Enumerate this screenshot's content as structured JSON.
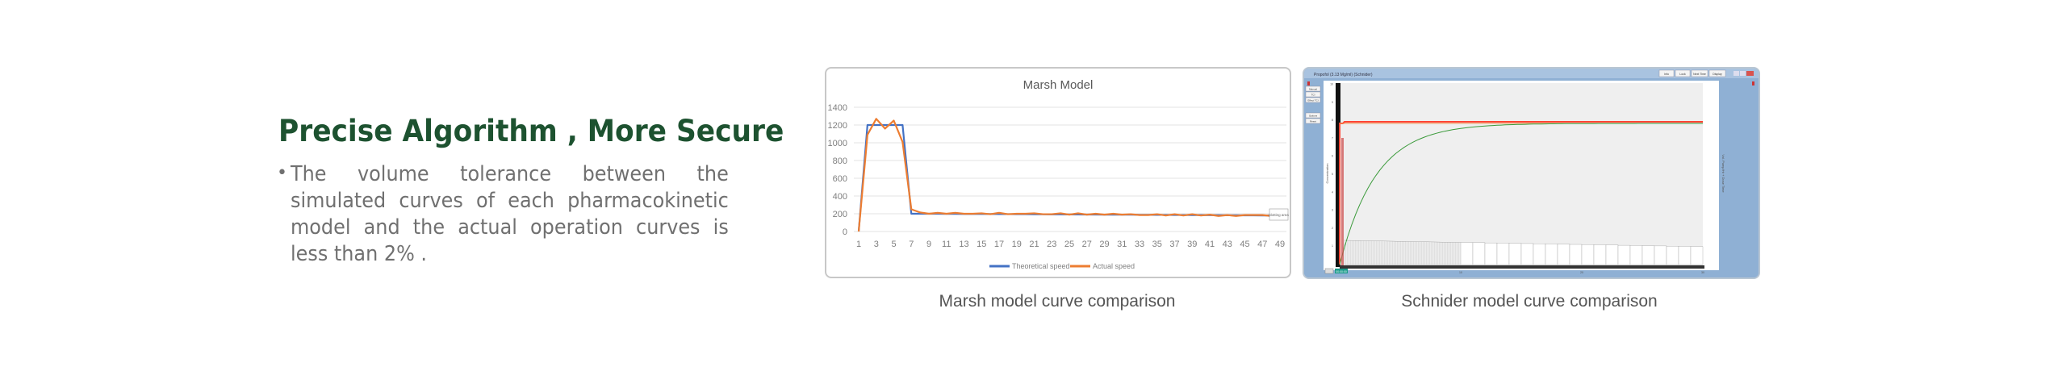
{
  "headline": "Precise Algorithm , More Secure",
  "bullet": "The volume tolerance between the simulated curves of each pharmacokinetic model and the actual operation curves is less than 2% .",
  "bullet_marker": "•",
  "captions": {
    "marsh": "Marsh model curve comparison",
    "schnider": "Schnider model curve comparison"
  },
  "colors": {
    "headline": "#1d5230",
    "theoretical": "#4472c4",
    "actual": "#ed7d31"
  },
  "chart_data": [
    {
      "type": "line",
      "title": "Marsh Model",
      "xlabel": "",
      "ylabel": "",
      "ylim": [
        0,
        1400
      ],
      "yticks": [
        0,
        200,
        400,
        600,
        800,
        1000,
        1200,
        1400
      ],
      "x": [
        1,
        2,
        3,
        4,
        5,
        6,
        7,
        8,
        9,
        10,
        11,
        12,
        13,
        14,
        15,
        16,
        17,
        18,
        19,
        20,
        21,
        22,
        23,
        24,
        25,
        26,
        27,
        28,
        29,
        30,
        31,
        32,
        33,
        34,
        35,
        36,
        37,
        38,
        39,
        40,
        41,
        42,
        43,
        44,
        45,
        46,
        47,
        48,
        49
      ],
      "xtick_labels": [
        "1",
        "3",
        "5",
        "7",
        "9",
        "11",
        "13",
        "15",
        "17",
        "19",
        "21",
        "23",
        "25",
        "27",
        "29",
        "31",
        "33",
        "35",
        "37",
        "39",
        "41",
        "43",
        "45",
        "47",
        "49"
      ],
      "grid": true,
      "legend": "bottom",
      "annotation": "plotting area",
      "series": [
        {
          "name": "Theoretical speed",
          "color": "#4472c4",
          "values": [
            0,
            1200,
            1200,
            1200,
            1200,
            1200,
            200,
            200,
            200,
            200,
            199,
            199,
            198,
            198,
            197,
            197,
            196,
            196,
            195,
            195,
            194,
            194,
            193,
            193,
            192,
            192,
            191,
            191,
            190,
            190,
            189,
            189,
            188,
            188,
            187,
            187,
            186,
            186,
            185,
            185,
            184,
            184,
            183,
            183,
            182,
            182,
            181,
            181,
            180
          ]
        },
        {
          "name": "Actual speed",
          "color": "#ed7d31",
          "values": [
            0,
            1090,
            1270,
            1160,
            1250,
            1010,
            250,
            215,
            200,
            210,
            200,
            210,
            200,
            200,
            205,
            195,
            210,
            195,
            200,
            200,
            205,
            195,
            195,
            205,
            190,
            205,
            190,
            200,
            190,
            200,
            190,
            195,
            185,
            185,
            195,
            180,
            195,
            180,
            195,
            180,
            190,
            175,
            185,
            175,
            185,
            185,
            185,
            175,
            190
          ]
        }
      ]
    }
  ],
  "schnider_window": {
    "title": "Propofol (3.13 Mg/ml) (Schnider)",
    "top_buttons": [
      "Info",
      "Lock",
      "Next Time",
      "Display"
    ],
    "side_buttons": [
      "Manual",
      "TCI",
      "Effect TCI",
      "Options",
      "Reset"
    ],
    "left_axis_label": "Concentration",
    "right_axis_label": "Vol. Pump/Hr + Dose Time",
    "y_ticks": [
      "1",
      "2",
      "3",
      "4",
      "5",
      "6",
      "7",
      "8",
      "9",
      "10"
    ],
    "x_ticks": [
      "10",
      "20",
      "30"
    ],
    "timer": "00:00:00"
  }
}
